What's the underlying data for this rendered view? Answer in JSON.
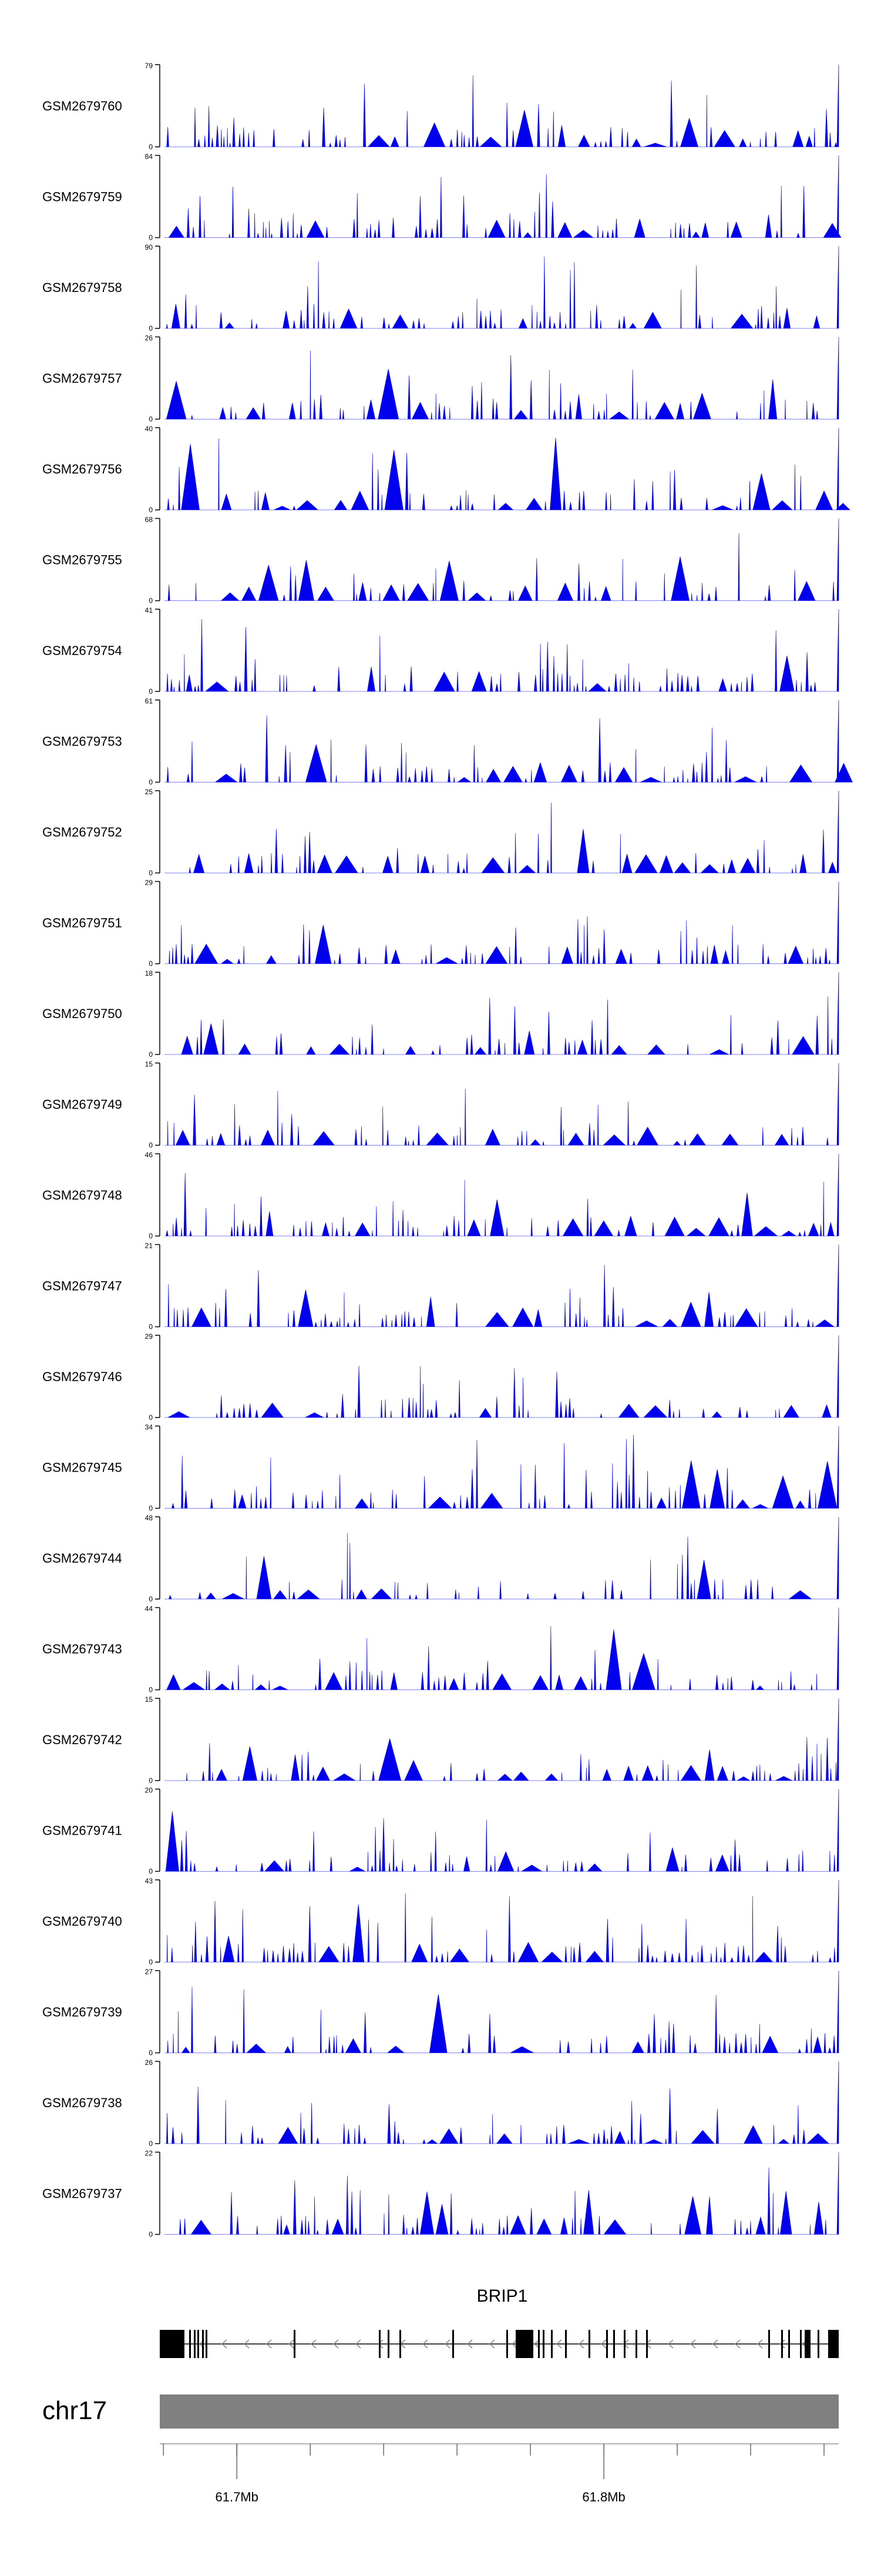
{
  "chart_data": {
    "type": "area",
    "tracks": [
      {
        "name": "GSM2679760",
        "ymax": 79,
        "ymin": 0
      },
      {
        "name": "GSM2679759",
        "ymax": 84,
        "ymin": 0
      },
      {
        "name": "GSM2679758",
        "ymax": 90,
        "ymin": 0
      },
      {
        "name": "GSM2679757",
        "ymax": 26,
        "ymin": 0
      },
      {
        "name": "GSM2679756",
        "ymax": 40,
        "ymin": 0
      },
      {
        "name": "GSM2679755",
        "ymax": 68,
        "ymin": 0
      },
      {
        "name": "GSM2679754",
        "ymax": 41,
        "ymin": 0
      },
      {
        "name": "GSM2679753",
        "ymax": 61,
        "ymin": 0
      },
      {
        "name": "GSM2679752",
        "ymax": 25,
        "ymin": 0
      },
      {
        "name": "GSM2679751",
        "ymax": 29,
        "ymin": 0
      },
      {
        "name": "GSM2679750",
        "ymax": 18,
        "ymin": 0
      },
      {
        "name": "GSM2679749",
        "ymax": 15,
        "ymin": 0
      },
      {
        "name": "GSM2679748",
        "ymax": 46,
        "ymin": 0
      },
      {
        "name": "GSM2679747",
        "ymax": 21,
        "ymin": 0
      },
      {
        "name": "GSM2679746",
        "ymax": 29,
        "ymin": 0
      },
      {
        "name": "GSM2679745",
        "ymax": 34,
        "ymin": 0
      },
      {
        "name": "GSM2679744",
        "ymax": 48,
        "ymin": 0
      },
      {
        "name": "GSM2679743",
        "ymax": 44,
        "ymin": 0
      },
      {
        "name": "GSM2679742",
        "ymax": 15,
        "ymin": 0
      },
      {
        "name": "GSM2679741",
        "ymax": 20,
        "ymin": 0
      },
      {
        "name": "GSM2679740",
        "ymax": 43,
        "ymin": 0
      },
      {
        "name": "GSM2679739",
        "ymax": 27,
        "ymin": 0
      },
      {
        "name": "GSM2679738",
        "ymax": 26,
        "ymin": 0
      },
      {
        "name": "GSM2679737",
        "ymax": 22,
        "ymin": 0
      }
    ],
    "gene": {
      "name": "BRIP1",
      "strand": "-"
    },
    "chromosome": "chr17",
    "axis_ticks": [
      {
        "label": "61.7Mb",
        "value": 61.7
      },
      {
        "label": "61.8Mb",
        "value": 61.8
      }
    ],
    "xlim_mb": [
      61.679,
      61.864
    ],
    "colors": {
      "signal": "#0000ee",
      "gene": "#000000",
      "ideogram": "#808080"
    }
  }
}
